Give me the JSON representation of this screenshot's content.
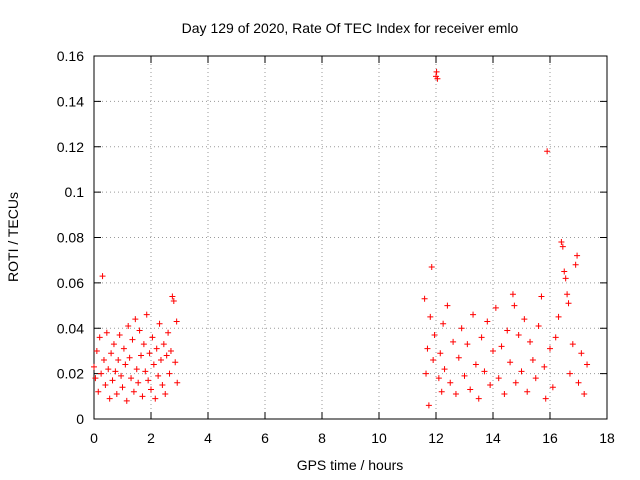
{
  "chart_data": {
    "type": "scatter",
    "title": "Day 129 of 2020, Rate Of TEC Index for receiver emlo",
    "xlabel": "GPS time / hours",
    "ylabel": "ROTI / TECUs",
    "xlim": [
      0,
      18
    ],
    "ylim": [
      0,
      0.16
    ],
    "x_ticks": [
      0,
      2,
      4,
      6,
      8,
      10,
      12,
      14,
      16,
      18
    ],
    "x_tick_labels": [
      "0",
      "2",
      "4",
      "6",
      "8",
      "10",
      "12",
      "14",
      "16",
      "18"
    ],
    "y_ticks": [
      0,
      0.02,
      0.04,
      0.06,
      0.08,
      0.1,
      0.12,
      0.14,
      0.16
    ],
    "y_tick_labels": [
      "0",
      "0.02",
      "0.04",
      "0.06",
      "0.08",
      "0.1",
      "0.12",
      "0.14",
      "0.16"
    ],
    "grid": true,
    "legend": "none",
    "marker": "+",
    "color": "#ff0000",
    "series": [
      {
        "points": [
          [
            0.0,
            0.023
          ],
          [
            0.05,
            0.018
          ],
          [
            0.1,
            0.03
          ],
          [
            0.15,
            0.012
          ],
          [
            0.2,
            0.036
          ],
          [
            0.25,
            0.02
          ],
          [
            0.3,
            0.063
          ],
          [
            0.35,
            0.026
          ],
          [
            0.4,
            0.015
          ],
          [
            0.45,
            0.038
          ],
          [
            0.5,
            0.022
          ],
          [
            0.55,
            0.009
          ],
          [
            0.6,
            0.029
          ],
          [
            0.65,
            0.017
          ],
          [
            0.7,
            0.033
          ],
          [
            0.75,
            0.021
          ],
          [
            0.8,
            0.011
          ],
          [
            0.85,
            0.026
          ],
          [
            0.9,
            0.037
          ],
          [
            0.95,
            0.019
          ],
          [
            1.0,
            0.014
          ],
          [
            1.05,
            0.031
          ],
          [
            1.1,
            0.024
          ],
          [
            1.15,
            0.008
          ],
          [
            1.2,
            0.041
          ],
          [
            1.25,
            0.027
          ],
          [
            1.3,
            0.018
          ],
          [
            1.35,
            0.035
          ],
          [
            1.4,
            0.012
          ],
          [
            1.45,
            0.044
          ],
          [
            1.5,
            0.022
          ],
          [
            1.55,
            0.016
          ],
          [
            1.6,
            0.039
          ],
          [
            1.65,
            0.028
          ],
          [
            1.7,
            0.01
          ],
          [
            1.75,
            0.033
          ],
          [
            1.8,
            0.021
          ],
          [
            1.85,
            0.046
          ],
          [
            1.9,
            0.017
          ],
          [
            1.95,
            0.029
          ],
          [
            2.0,
            0.013
          ],
          [
            2.05,
            0.036
          ],
          [
            2.1,
            0.024
          ],
          [
            2.15,
            0.009
          ],
          [
            2.2,
            0.031
          ],
          [
            2.25,
            0.019
          ],
          [
            2.3,
            0.042
          ],
          [
            2.35,
            0.026
          ],
          [
            2.4,
            0.015
          ],
          [
            2.45,
            0.033
          ],
          [
            2.5,
            0.011
          ],
          [
            2.55,
            0.028
          ],
          [
            2.6,
            0.038
          ],
          [
            2.65,
            0.02
          ],
          [
            2.7,
            0.03
          ],
          [
            2.75,
            0.054
          ],
          [
            2.8,
            0.052
          ],
          [
            2.85,
            0.025
          ],
          [
            2.9,
            0.043
          ],
          [
            2.92,
            0.016
          ]
        ]
      },
      {
        "points": [
          [
            11.6,
            0.053
          ],
          [
            11.65,
            0.02
          ],
          [
            11.7,
            0.031
          ],
          [
            11.75,
            0.006
          ],
          [
            11.8,
            0.045
          ],
          [
            11.85,
            0.067
          ],
          [
            11.9,
            0.026
          ],
          [
            11.95,
            0.037
          ],
          [
            12.0,
            0.151
          ],
          [
            12.02,
            0.153
          ],
          [
            12.05,
            0.15
          ],
          [
            12.1,
            0.018
          ],
          [
            12.15,
            0.029
          ],
          [
            12.2,
            0.012
          ],
          [
            12.25,
            0.042
          ],
          [
            12.3,
            0.022
          ],
          [
            12.4,
            0.05
          ],
          [
            12.5,
            0.016
          ],
          [
            12.6,
            0.034
          ],
          [
            12.7,
            0.011
          ],
          [
            12.8,
            0.027
          ],
          [
            12.9,
            0.04
          ],
          [
            13.0,
            0.019
          ],
          [
            13.1,
            0.033
          ],
          [
            13.2,
            0.013
          ],
          [
            13.3,
            0.046
          ],
          [
            13.4,
            0.024
          ],
          [
            13.5,
            0.009
          ],
          [
            13.6,
            0.036
          ],
          [
            13.7,
            0.021
          ],
          [
            13.8,
            0.043
          ],
          [
            13.9,
            0.015
          ],
          [
            14.0,
            0.03
          ],
          [
            14.1,
            0.049
          ],
          [
            14.2,
            0.018
          ],
          [
            14.3,
            0.032
          ],
          [
            14.4,
            0.011
          ],
          [
            14.5,
            0.039
          ],
          [
            14.6,
            0.025
          ],
          [
            14.7,
            0.055
          ],
          [
            14.75,
            0.05
          ],
          [
            14.8,
            0.016
          ],
          [
            14.9,
            0.037
          ],
          [
            15.0,
            0.021
          ],
          [
            15.1,
            0.044
          ],
          [
            15.2,
            0.012
          ],
          [
            15.3,
            0.034
          ],
          [
            15.4,
            0.026
          ],
          [
            15.5,
            0.018
          ],
          [
            15.6,
            0.041
          ],
          [
            15.7,
            0.054
          ],
          [
            15.8,
            0.023
          ],
          [
            15.85,
            0.009
          ],
          [
            15.9,
            0.118
          ],
          [
            16.0,
            0.031
          ],
          [
            16.1,
            0.014
          ],
          [
            16.2,
            0.036
          ],
          [
            16.3,
            0.045
          ],
          [
            16.4,
            0.078
          ],
          [
            16.45,
            0.076
          ],
          [
            16.5,
            0.065
          ],
          [
            16.55,
            0.062
          ],
          [
            16.6,
            0.055
          ],
          [
            16.65,
            0.051
          ],
          [
            16.7,
            0.02
          ],
          [
            16.8,
            0.033
          ],
          [
            16.9,
            0.068
          ],
          [
            16.95,
            0.072
          ],
          [
            17.0,
            0.016
          ],
          [
            17.1,
            0.029
          ],
          [
            17.2,
            0.011
          ],
          [
            17.3,
            0.024
          ]
        ]
      }
    ]
  }
}
